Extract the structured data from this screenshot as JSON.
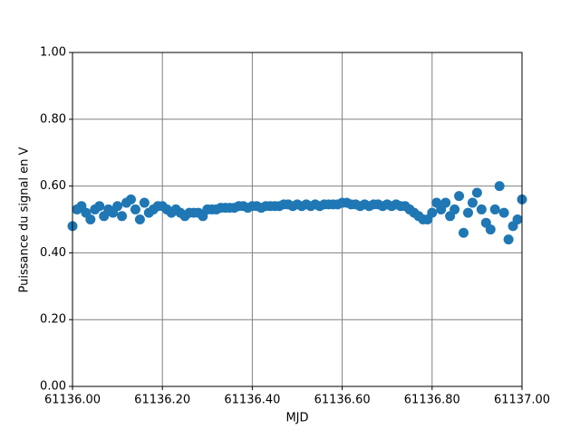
{
  "chart_data": {
    "type": "scatter",
    "xlabel": "MJD",
    "ylabel": "Puissance du signal en V",
    "color": "#1f77b4",
    "grid": true,
    "xlim": [
      61136.0,
      61137.0
    ],
    "ylim": [
      0,
      1
    ],
    "xticks": [
      {
        "value": 61136.0,
        "label": "61136.00"
      },
      {
        "value": 61136.2,
        "label": "61136.20"
      },
      {
        "value": 61136.4,
        "label": "61136.40"
      },
      {
        "value": 61136.6,
        "label": "61136.60"
      },
      {
        "value": 61136.8,
        "label": "61136.80"
      },
      {
        "value": 61137.0,
        "label": "61137.00"
      }
    ],
    "yticks": [
      {
        "value": 0,
        "label": "0.00"
      },
      {
        "value": 0.2,
        "label": "0.20"
      },
      {
        "value": 0.4,
        "label": "0.40"
      },
      {
        "value": 0.6,
        "label": "0.60"
      },
      {
        "value": 0.8,
        "label": "0.80"
      },
      {
        "value": 1,
        "label": "1.00"
      }
    ],
    "x": [
      61136.0,
      61136.01,
      61136.02,
      61136.03,
      61136.04,
      61136.05,
      61136.06,
      61136.07,
      61136.08,
      61136.09,
      61136.1,
      61136.11,
      61136.12,
      61136.13,
      61136.14,
      61136.15,
      61136.16,
      61136.17,
      61136.18,
      61136.19,
      61136.2,
      61136.21,
      61136.22,
      61136.23,
      61136.24,
      61136.25,
      61136.26,
      61136.27,
      61136.28,
      61136.29,
      61136.3,
      61136.31,
      61136.32,
      61136.33,
      61136.34,
      61136.35,
      61136.36,
      61136.37,
      61136.38,
      61136.39,
      61136.4,
      61136.41,
      61136.42,
      61136.43,
      61136.44,
      61136.45,
      61136.46,
      61136.47,
      61136.48,
      61136.49,
      61136.5,
      61136.51,
      61136.52,
      61136.53,
      61136.54,
      61136.55,
      61136.56,
      61136.57,
      61136.58,
      61136.59,
      61136.6,
      61136.61,
      61136.62,
      61136.63,
      61136.64,
      61136.65,
      61136.66,
      61136.67,
      61136.68,
      61136.69,
      61136.7,
      61136.71,
      61136.72,
      61136.73,
      61136.74,
      61136.75,
      61136.76,
      61136.77,
      61136.78,
      61136.79,
      61136.8,
      61136.81,
      61136.82,
      61136.83,
      61136.84,
      61136.85,
      61136.86,
      61136.87,
      61136.88,
      61136.89,
      61136.9,
      61136.91,
      61136.92,
      61136.93,
      61136.94,
      61136.95,
      61136.96,
      61136.97,
      61136.98,
      61136.99,
      61137.0
    ],
    "values": [
      0.48,
      0.53,
      0.54,
      0.52,
      0.5,
      0.53,
      0.54,
      0.51,
      0.53,
      0.52,
      0.54,
      0.51,
      0.55,
      0.56,
      0.53,
      0.5,
      0.55,
      0.52,
      0.53,
      0.54,
      0.54,
      0.53,
      0.52,
      0.53,
      0.52,
      0.51,
      0.52,
      0.52,
      0.52,
      0.51,
      0.53,
      0.53,
      0.53,
      0.535,
      0.535,
      0.535,
      0.535,
      0.54,
      0.54,
      0.535,
      0.54,
      0.54,
      0.535,
      0.54,
      0.54,
      0.54,
      0.54,
      0.545,
      0.545,
      0.54,
      0.545,
      0.54,
      0.545,
      0.54,
      0.545,
      0.54,
      0.545,
      0.545,
      0.545,
      0.545,
      0.55,
      0.55,
      0.545,
      0.545,
      0.54,
      0.545,
      0.54,
      0.545,
      0.545,
      0.54,
      0.545,
      0.54,
      0.545,
      0.54,
      0.54,
      0.53,
      0.52,
      0.51,
      0.5,
      0.5,
      0.52,
      0.55,
      0.53,
      0.55,
      0.51,
      0.53,
      0.57,
      0.46,
      0.52,
      0.55,
      0.58,
      0.53,
      0.49,
      0.47,
      0.53,
      0.6,
      0.52,
      0.44,
      0.48,
      0.5,
      0.56
    ]
  }
}
